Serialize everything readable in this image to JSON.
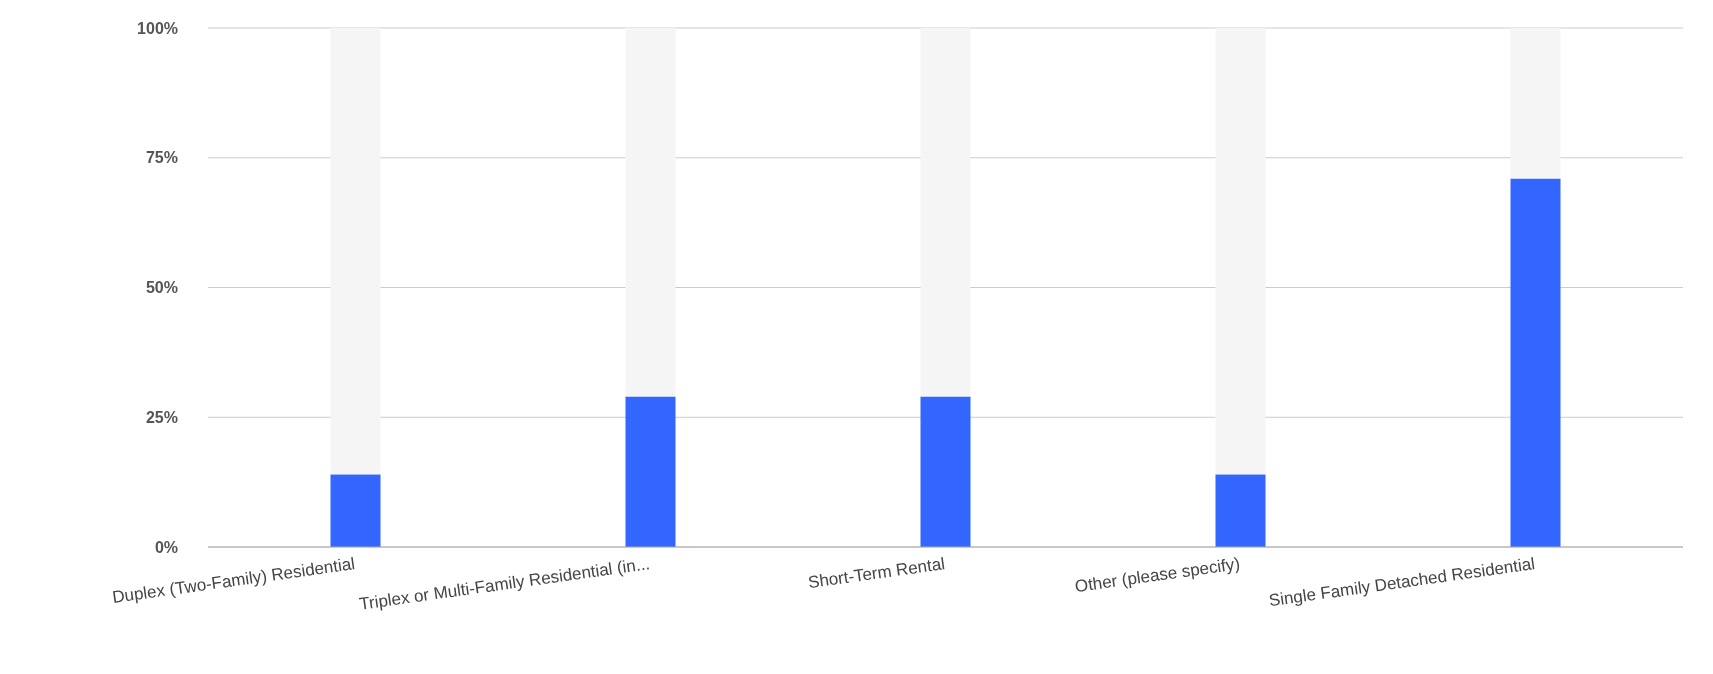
{
  "chart_data": {
    "type": "bar",
    "stacked": true,
    "categories": [
      "Duplex (Two-Family) Residential",
      "Triplex or Multi-Family Residential (in...",
      "Short-Term Rental",
      "Other (please specify)",
      "Single Family Detached Residential"
    ],
    "series": [
      {
        "color": "#3366ff",
        "values": [
          14,
          29,
          29,
          14,
          71
        ]
      },
      {
        "color": "#f5f5f5",
        "values": [
          86,
          71,
          71,
          86,
          29
        ]
      }
    ],
    "ylim": [
      0,
      100
    ],
    "yticks": [
      {
        "value": 0,
        "label": "0%"
      },
      {
        "value": 25,
        "label": "25%"
      },
      {
        "value": 50,
        "label": "50%"
      },
      {
        "value": 75,
        "label": "75%"
      },
      {
        "value": 100,
        "label": "100%"
      }
    ],
    "grid": "y"
  }
}
